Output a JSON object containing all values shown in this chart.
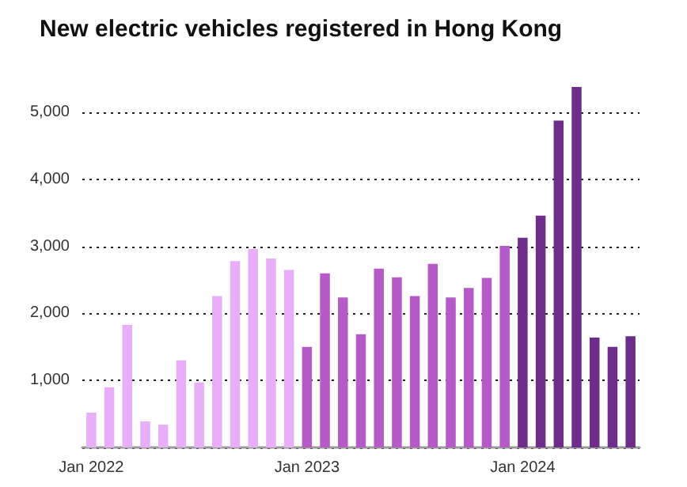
{
  "chart_data": {
    "type": "bar",
    "title": "New electric vehicles registered in Hong Kong",
    "categories": [
      "Jan 2022",
      null,
      null,
      null,
      null,
      null,
      null,
      null,
      null,
      null,
      null,
      null,
      "Jan 2023",
      null,
      null,
      null,
      null,
      null,
      null,
      null,
      null,
      null,
      null,
      null,
      "Jan 2024",
      null,
      null,
      null,
      null,
      null,
      null
    ],
    "values": [
      520,
      900,
      1830,
      390,
      340,
      1300,
      970,
      2260,
      2780,
      2960,
      2820,
      2650,
      1500,
      2600,
      2240,
      1690,
      2670,
      2540,
      2260,
      2740,
      2240,
      2380,
      2530,
      3010,
      3130,
      3460,
      4880,
      5380,
      1640,
      1500,
      1660
    ],
    "colors": [
      "#e9aefa",
      "#e9aefa",
      "#e9aefa",
      "#e9aefa",
      "#e9aefa",
      "#e9aefa",
      "#e9aefa",
      "#e9aefa",
      "#e9aefa",
      "#e9aefa",
      "#e9aefa",
      "#e9aefa",
      "#b55ac6",
      "#b55ac6",
      "#b55ac6",
      "#b55ac6",
      "#b55ac6",
      "#b55ac6",
      "#b55ac6",
      "#b55ac6",
      "#b55ac6",
      "#b55ac6",
      "#b55ac6",
      "#b55ac6",
      "#6e2d8b",
      "#6e2d8b",
      "#6e2d8b",
      "#6e2d8b",
      "#6e2d8b",
      "#6e2d8b",
      "#6e2d8b"
    ],
    "yticks": [
      {
        "value": 0,
        "label": null
      },
      {
        "value": 1000,
        "label": "1,000"
      },
      {
        "value": 2000,
        "label": "2,000"
      },
      {
        "value": 3000,
        "label": "3,000"
      },
      {
        "value": 4000,
        "label": "4,000"
      },
      {
        "value": 5000,
        "label": "5,000"
      }
    ],
    "ylim": [
      0,
      5380
    ],
    "grid": "y"
  }
}
